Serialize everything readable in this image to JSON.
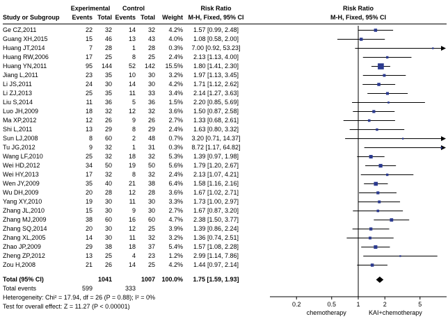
{
  "header": {
    "group_experimental": "Experimental",
    "group_control": "Control",
    "group_risk_ratio_text": "Risk Ratio",
    "group_risk_ratio_plot": "Risk Ratio",
    "col_study": "Study or Subgroup",
    "col_events_experimental": "Events",
    "col_total_experimental": "Total",
    "col_events_control": "Events",
    "col_total_control": "Total",
    "col_weight": "Weight",
    "col_risk_ratio": "M-H, Fixed, 95% CI",
    "col_risk_ratio_plot": "M-H, Fixed, 95% CI"
  },
  "chart_data": {
    "type": "forest",
    "x_scale": "log",
    "x_range": [
      0.1,
      10
    ],
    "ticks": [
      0.2,
      0.5,
      1,
      2,
      5
    ],
    "axis_label_left": "chemotherapy",
    "axis_label_right": "KAI+chemotherapy",
    "colors": {
      "marker": "#2b3a8f",
      "ci_line": "#000000",
      "diamond": "#000000",
      "gridline": "#000000"
    },
    "studies": [
      {
        "study": "Ge CZ,2011",
        "e_events": 22,
        "e_total": 32,
        "c_events": 14,
        "c_total": 32,
        "weight": "4.2%",
        "rr": 1.57,
        "lo": 0.99,
        "hi": 2.48,
        "ci_text": "1.57 [0.99, 2.48]"
      },
      {
        "study": "Guang XH,2015",
        "e_events": 15,
        "e_total": 46,
        "c_events": 13,
        "c_total": 43,
        "weight": "4.0%",
        "rr": 1.08,
        "lo": 0.58,
        "hi": 2.0,
        "ci_text": "1.08 [0.58, 2.00]"
      },
      {
        "study": "Huang JT,2014",
        "e_events": 7,
        "e_total": 28,
        "c_events": 1,
        "c_total": 28,
        "weight": "0.3%",
        "rr": 7.0,
        "lo": 0.92,
        "hi": 53.23,
        "ci_text": "7.00 [0.92, 53.23]"
      },
      {
        "study": "Huang RW,2006",
        "e_events": 17,
        "e_total": 25,
        "c_events": 8,
        "c_total": 25,
        "weight": "2.4%",
        "rr": 2.13,
        "lo": 1.13,
        "hi": 4.0,
        "ci_text": "2.13 [1.13, 4.00]"
      },
      {
        "study": "Huang YN,2011",
        "e_events": 95,
        "e_total": 144,
        "c_events": 52,
        "c_total": 142,
        "weight": "15.5%",
        "rr": 1.8,
        "lo": 1.41,
        "hi": 2.3,
        "ci_text": "1.80 [1.41, 2.30]"
      },
      {
        "study": "Jiang L,2011",
        "e_events": 23,
        "e_total": 35,
        "c_events": 10,
        "c_total": 30,
        "weight": "3.2%",
        "rr": 1.97,
        "lo": 1.13,
        "hi": 3.45,
        "ci_text": "1.97 [1.13, 3.45]"
      },
      {
        "study": "Li JS,2011",
        "e_events": 24,
        "e_total": 30,
        "c_events": 14,
        "c_total": 30,
        "weight": "4.2%",
        "rr": 1.71,
        "lo": 1.12,
        "hi": 2.62,
        "ci_text": "1.71 [1.12, 2.62]"
      },
      {
        "study": "Li ZJ,2013",
        "e_events": 25,
        "e_total": 35,
        "c_events": 11,
        "c_total": 33,
        "weight": "3.4%",
        "rr": 2.14,
        "lo": 1.27,
        "hi": 3.63,
        "ci_text": "2.14 [1.27, 3.63]"
      },
      {
        "study": "Liu S,2014",
        "e_events": 11,
        "e_total": 36,
        "c_events": 5,
        "c_total": 36,
        "weight": "1.5%",
        "rr": 2.2,
        "lo": 0.85,
        "hi": 5.69,
        "ci_text": "2.20 [0.85, 5.69]"
      },
      {
        "study": "Luo JH,2009",
        "e_events": 18,
        "e_total": 32,
        "c_events": 12,
        "c_total": 32,
        "weight": "3.6%",
        "rr": 1.5,
        "lo": 0.87,
        "hi": 2.58,
        "ci_text": "1.50 [0.87, 2.58]"
      },
      {
        "study": "Ma XP,2012",
        "e_events": 12,
        "e_total": 26,
        "c_events": 9,
        "c_total": 26,
        "weight": "2.7%",
        "rr": 1.33,
        "lo": 0.68,
        "hi": 2.61,
        "ci_text": "1.33 [0.68, 2.61]"
      },
      {
        "study": "Shi L,2011",
        "e_events": 13,
        "e_total": 29,
        "c_events": 8,
        "c_total": 29,
        "weight": "2.4%",
        "rr": 1.63,
        "lo": 0.8,
        "hi": 3.32,
        "ci_text": "1.63 [0.80, 3.32]"
      },
      {
        "study": "Sun LJ,2008",
        "e_events": 8,
        "e_total": 60,
        "c_events": 2,
        "c_total": 48,
        "weight": "0.7%",
        "rr": 3.2,
        "lo": 0.71,
        "hi": 14.37,
        "ci_text": "3.20 [0.71, 14.37]"
      },
      {
        "study": "Tu JG,2012",
        "e_events": 9,
        "e_total": 32,
        "c_events": 1,
        "c_total": 31,
        "weight": "0.3%",
        "rr": 8.72,
        "lo": 1.17,
        "hi": 64.82,
        "ci_text": "8.72 [1.17, 64.82]"
      },
      {
        "study": "Wang LF,2010",
        "e_events": 25,
        "e_total": 32,
        "c_events": 18,
        "c_total": 32,
        "weight": "5.3%",
        "rr": 1.39,
        "lo": 0.97,
        "hi": 1.98,
        "ci_text": "1.39 [0.97, 1.98]"
      },
      {
        "study": "Wei HD,2012",
        "e_events": 34,
        "e_total": 50,
        "c_events": 19,
        "c_total": 50,
        "weight": "5.6%",
        "rr": 1.79,
        "lo": 1.2,
        "hi": 2.67,
        "ci_text": "1.79 [1.20, 2.67]"
      },
      {
        "study": "Wei HY,2013",
        "e_events": 17,
        "e_total": 32,
        "c_events": 8,
        "c_total": 32,
        "weight": "2.4%",
        "rr": 2.13,
        "lo": 1.07,
        "hi": 4.21,
        "ci_text": "2.13 [1.07, 4.21]"
      },
      {
        "study": "Wen JY,2009",
        "e_events": 35,
        "e_total": 40,
        "c_events": 21,
        "c_total": 38,
        "weight": "6.4%",
        "rr": 1.58,
        "lo": 1.16,
        "hi": 2.16,
        "ci_text": "1.58 [1.16, 2.16]"
      },
      {
        "study": "Wu DH,2009",
        "e_events": 20,
        "e_total": 28,
        "c_events": 12,
        "c_total": 28,
        "weight": "3.6%",
        "rr": 1.67,
        "lo": 1.02,
        "hi": 2.71,
        "ci_text": "1.67 [1.02, 2.71]"
      },
      {
        "study": "Yang XY,2010",
        "e_events": 19,
        "e_total": 30,
        "c_events": 11,
        "c_total": 30,
        "weight": "3.3%",
        "rr": 1.73,
        "lo": 1.0,
        "hi": 2.97,
        "ci_text": "1.73 [1.00, 2.97]"
      },
      {
        "study": "Zhang JL,2010",
        "e_events": 15,
        "e_total": 30,
        "c_events": 9,
        "c_total": 30,
        "weight": "2.7%",
        "rr": 1.67,
        "lo": 0.87,
        "hi": 3.2,
        "ci_text": "1.67 [0.87, 3.20]"
      },
      {
        "study": "Zhang MJ,2009",
        "e_events": 38,
        "e_total": 60,
        "c_events": 16,
        "c_total": 60,
        "weight": "4.7%",
        "rr": 2.38,
        "lo": 1.5,
        "hi": 3.77,
        "ci_text": "2.38 [1.50, 3.77]"
      },
      {
        "study": "Zhang SQ,2014",
        "e_events": 20,
        "e_total": 30,
        "c_events": 12,
        "c_total": 25,
        "weight": "3.9%",
        "rr": 1.39,
        "lo": 0.86,
        "hi": 2.24,
        "ci_text": "1.39 [0.86, 2.24]"
      },
      {
        "study": "Zhang XL,2005",
        "e_events": 14,
        "e_total": 30,
        "c_events": 11,
        "c_total": 32,
        "weight": "3.2%",
        "rr": 1.36,
        "lo": 0.74,
        "hi": 2.51,
        "ci_text": "1.36 [0.74, 2.51]"
      },
      {
        "study": "Zhao JP,2009",
        "e_events": 29,
        "e_total": 38,
        "c_events": 18,
        "c_total": 37,
        "weight": "5.4%",
        "rr": 1.57,
        "lo": 1.08,
        "hi": 2.28,
        "ci_text": "1.57 [1.08, 2.28]"
      },
      {
        "study": "Zheng ZP,2012",
        "e_events": 13,
        "e_total": 25,
        "c_events": 4,
        "c_total": 23,
        "weight": "1.2%",
        "rr": 2.99,
        "lo": 1.14,
        "hi": 7.86,
        "ci_text": "2.99 [1.14, 7.86]"
      },
      {
        "study": "Zou H,2008",
        "e_events": 21,
        "e_total": 26,
        "c_events": 14,
        "c_total": 25,
        "weight": "4.2%",
        "rr": 1.44,
        "lo": 0.97,
        "hi": 2.14,
        "ci_text": "1.44 [0.97, 2.14]"
      }
    ],
    "total": {
      "label": "Total (95% CI)",
      "experimental_total": 1041,
      "control_total": 1007,
      "weight": "100.0%",
      "rr": 1.75,
      "lo": 1.59,
      "hi": 1.93,
      "ci_text": "1.75 [1.59, 1.93]"
    },
    "total_events": {
      "label": "Total events",
      "experimental": 599,
      "control": 333
    },
    "heterogeneity": "Heterogeneity: Chi² = 17.94, df = 26 (P = 0.88); I² = 0%",
    "overall_effect": "Test for overall effect: Z = 11.27 (P < 0.00001)"
  }
}
